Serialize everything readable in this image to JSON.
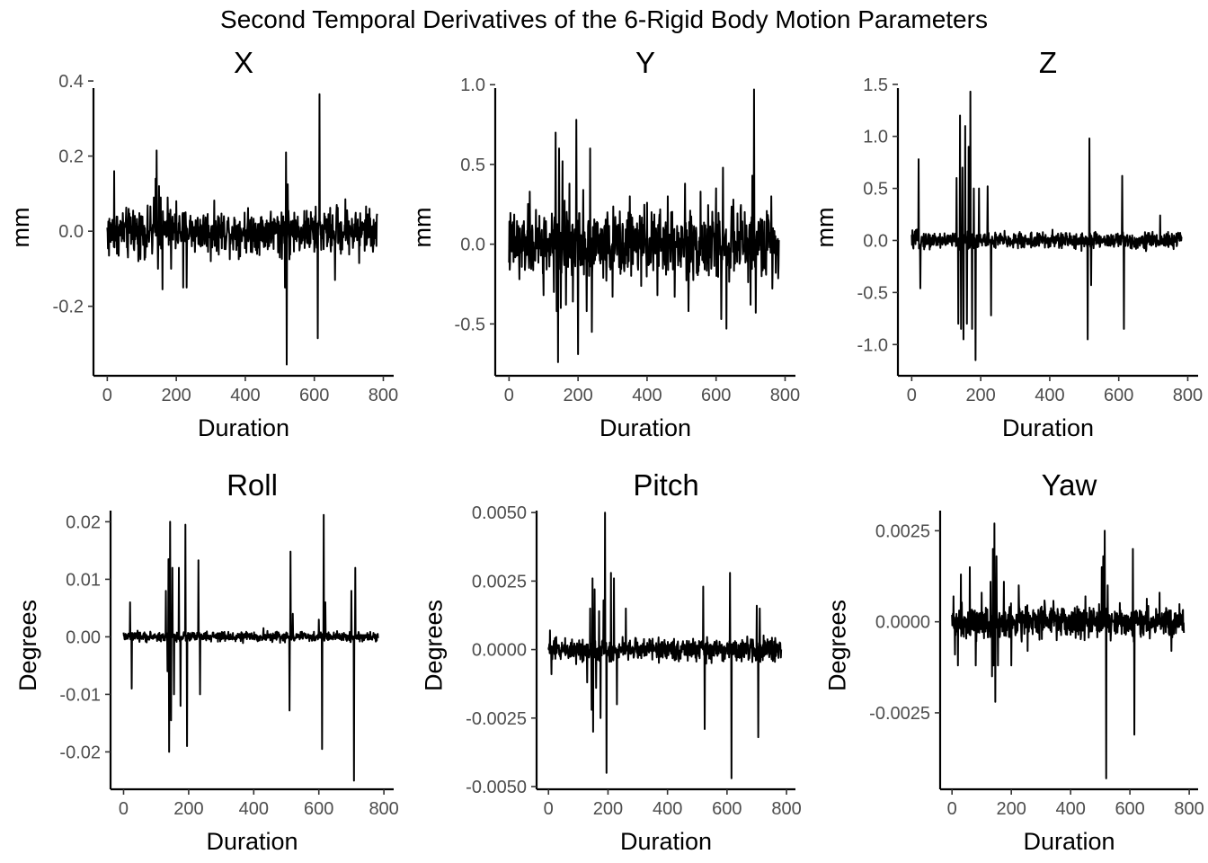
{
  "title": "Second Temporal Derivatives of the 6-Rigid Body Motion Parameters",
  "chart_data": [
    {
      "type": "line",
      "title": "X",
      "xlabel": "Duration",
      "ylabel": "mm",
      "xlim": [
        -40,
        830
      ],
      "ylim": [
        -0.385,
        0.405
      ],
      "xticks": [
        0,
        200,
        400,
        600,
        800
      ],
      "xtick_labels": [
        "0",
        "200",
        "400",
        "600",
        "800"
      ],
      "yticks": [
        -0.2,
        0.0,
        0.2,
        0.4
      ],
      "ytick_labels": [
        "-0.2",
        "0.0",
        "0.2",
        "0.4"
      ],
      "grid": false,
      "legend": "none",
      "n_points": 783,
      "noise": 0.028,
      "spikes": [
        [
          5,
          -0.065
        ],
        [
          20,
          0.16
        ],
        [
          28,
          -0.06
        ],
        [
          60,
          -0.07
        ],
        [
          75,
          0.055
        ],
        [
          90,
          -0.08
        ],
        [
          110,
          -0.07
        ],
        [
          130,
          -0.06
        ],
        [
          135,
          0.09
        ],
        [
          140,
          0.14
        ],
        [
          143,
          0.215
        ],
        [
          147,
          -0.1
        ],
        [
          150,
          0.12
        ],
        [
          155,
          0.09
        ],
        [
          160,
          -0.155
        ],
        [
          175,
          0.09
        ],
        [
          185,
          -0.1
        ],
        [
          200,
          0.08
        ],
        [
          220,
          -0.15
        ],
        [
          230,
          -0.15
        ],
        [
          300,
          -0.08
        ],
        [
          500,
          -0.07
        ],
        [
          505,
          0.05
        ],
        [
          515,
          -0.15
        ],
        [
          518,
          0.21
        ],
        [
          520,
          -0.355
        ],
        [
          523,
          0.125
        ],
        [
          528,
          -0.075
        ],
        [
          600,
          -0.055
        ],
        [
          610,
          -0.285
        ],
        [
          615,
          0.365
        ],
        [
          660,
          -0.13
        ],
        [
          665,
          0.07
        ],
        [
          690,
          0.085
        ],
        [
          730,
          -0.085
        ],
        [
          760,
          0.06
        ]
      ]
    },
    {
      "type": "line",
      "title": "Y",
      "xlabel": "Duration",
      "ylabel": "mm",
      "xlim": [
        -40,
        830
      ],
      "ylim": [
        -0.825,
        1.035
      ],
      "xticks": [
        0,
        200,
        400,
        600,
        800
      ],
      "xtick_labels": [
        "0",
        "200",
        "400",
        "600",
        "800"
      ],
      "yticks": [
        -0.5,
        0.0,
        0.5,
        1.0
      ],
      "ytick_labels": [
        "-0.5",
        "0.0",
        "0.5",
        "1.0"
      ],
      "grid": false,
      "legend": "none",
      "n_points": 783,
      "noise": 0.1,
      "spikes": [
        [
          30,
          -0.22
        ],
        [
          60,
          0.33
        ],
        [
          100,
          -0.32
        ],
        [
          130,
          -0.3
        ],
        [
          135,
          0.7
        ],
        [
          138,
          -0.42
        ],
        [
          142,
          -0.74
        ],
        [
          145,
          0.6
        ],
        [
          150,
          -0.4
        ],
        [
          155,
          0.52
        ],
        [
          165,
          -0.38
        ],
        [
          175,
          0.38
        ],
        [
          185,
          -0.36
        ],
        [
          195,
          0.78
        ],
        [
          200,
          -0.69
        ],
        [
          215,
          0.34
        ],
        [
          225,
          -0.42
        ],
        [
          235,
          0.6
        ],
        [
          240,
          -0.55
        ],
        [
          300,
          -0.33
        ],
        [
          350,
          0.3
        ],
        [
          400,
          0.26
        ],
        [
          430,
          -0.32
        ],
        [
          460,
          0.3
        ],
        [
          480,
          -0.33
        ],
        [
          510,
          0.38
        ],
        [
          520,
          -0.42
        ],
        [
          555,
          0.33
        ],
        [
          600,
          0.35
        ],
        [
          615,
          -0.47
        ],
        [
          620,
          0.48
        ],
        [
          630,
          -0.53
        ],
        [
          650,
          0.28
        ],
        [
          700,
          -0.38
        ],
        [
          705,
          0.43
        ],
        [
          710,
          0.97
        ],
        [
          715,
          -0.43
        ],
        [
          760,
          0.3
        ]
      ]
    },
    {
      "type": "line",
      "title": "Z",
      "xlabel": "Duration",
      "ylabel": "mm",
      "xlim": [
        -40,
        830
      ],
      "ylim": [
        -1.3,
        1.55
      ],
      "xticks": [
        0,
        200,
        400,
        600,
        800
      ],
      "xtick_labels": [
        "0",
        "200",
        "400",
        "600",
        "800"
      ],
      "yticks": [
        -1.0,
        -0.5,
        0.0,
        0.5,
        1.0,
        1.5
      ],
      "ytick_labels": [
        "-1.0",
        "-0.5",
        "0.0",
        "0.5",
        "1.0",
        "1.5"
      ],
      "grid": false,
      "legend": "none",
      "n_points": 783,
      "noise": 0.04,
      "spikes": [
        [
          20,
          0.78
        ],
        [
          25,
          -0.46
        ],
        [
          130,
          0.6
        ],
        [
          135,
          -0.8
        ],
        [
          140,
          1.2
        ],
        [
          143,
          -0.85
        ],
        [
          147,
          0.7
        ],
        [
          150,
          -0.95
        ],
        [
          155,
          1.1
        ],
        [
          160,
          -0.8
        ],
        [
          165,
          0.9
        ],
        [
          170,
          1.43
        ],
        [
          175,
          -0.85
        ],
        [
          180,
          0.5
        ],
        [
          185,
          -1.15
        ],
        [
          195,
          0.5
        ],
        [
          220,
          0.52
        ],
        [
          230,
          -0.72
        ],
        [
          510,
          -0.95
        ],
        [
          515,
          0.98
        ],
        [
          520,
          -0.43
        ],
        [
          610,
          0.62
        ],
        [
          615,
          -0.85
        ],
        [
          720,
          0.24
        ]
      ]
    },
    {
      "type": "line",
      "title": "Roll",
      "xlabel": "Duration",
      "ylabel": "Degrees",
      "xlim": [
        -40,
        830
      ],
      "ylim": [
        -0.0265,
        0.0235
      ],
      "xticks": [
        0,
        200,
        400,
        600,
        800
      ],
      "xtick_labels": [
        "0",
        "200",
        "400",
        "600",
        "800"
      ],
      "yticks": [
        -0.02,
        -0.01,
        0.0,
        0.01,
        0.02
      ],
      "ytick_labels": [
        "-0.02",
        "-0.01",
        "0.00",
        "0.01",
        "0.02"
      ],
      "grid": false,
      "legend": "none",
      "n_points": 783,
      "noise": 0.0004,
      "spikes": [
        [
          20,
          0.006
        ],
        [
          25,
          -0.009
        ],
        [
          130,
          0.008
        ],
        [
          135,
          -0.006
        ],
        [
          138,
          0.0135
        ],
        [
          140,
          -0.02
        ],
        [
          143,
          0.02
        ],
        [
          146,
          -0.0145
        ],
        [
          150,
          0.012
        ],
        [
          155,
          -0.01
        ],
        [
          170,
          0.012
        ],
        [
          175,
          -0.012
        ],
        [
          190,
          0.0195
        ],
        [
          195,
          -0.019
        ],
        [
          230,
          0.0133
        ],
        [
          235,
          -0.01
        ],
        [
          430,
          0.0015
        ],
        [
          510,
          -0.0128
        ],
        [
          513,
          0.0148
        ],
        [
          520,
          0.004
        ],
        [
          600,
          0.003
        ],
        [
          610,
          -0.0195
        ],
        [
          615,
          0.0212
        ],
        [
          620,
          0.006
        ],
        [
          700,
          0.008
        ],
        [
          708,
          -0.025
        ],
        [
          712,
          0.012
        ]
      ]
    },
    {
      "type": "line",
      "title": "Pitch",
      "xlabel": "Duration",
      "ylabel": "Degrees",
      "xlim": [
        -40,
        830
      ],
      "ylim": [
        -0.0051,
        0.0054
      ],
      "xticks": [
        0,
        200,
        400,
        600,
        800
      ],
      "xtick_labels": [
        "0",
        "200",
        "400",
        "600",
        "800"
      ],
      "yticks": [
        -0.005,
        -0.0025,
        0.0,
        0.0025,
        0.005
      ],
      "ytick_labels": [
        "-0.0050",
        "-0.0025",
        "0.0000",
        "0.0025",
        "0.0050"
      ],
      "grid": false,
      "legend": "none",
      "n_points": 783,
      "noise": 0.0002,
      "spikes": [
        [
          5,
          0.0007
        ],
        [
          10,
          -0.0009
        ],
        [
          130,
          -0.0012
        ],
        [
          140,
          0.0015
        ],
        [
          145,
          -0.0022
        ],
        [
          148,
          0.0026
        ],
        [
          150,
          -0.003
        ],
        [
          155,
          0.0022
        ],
        [
          160,
          -0.0014
        ],
        [
          170,
          0.0014
        ],
        [
          175,
          -0.0025
        ],
        [
          185,
          0.0018
        ],
        [
          190,
          0.005
        ],
        [
          195,
          -0.0045
        ],
        [
          210,
          0.0028
        ],
        [
          220,
          0.0026
        ],
        [
          230,
          -0.002
        ],
        [
          260,
          0.0015
        ],
        [
          520,
          0.0023
        ],
        [
          525,
          -0.0029
        ],
        [
          610,
          0.0028
        ],
        [
          615,
          -0.0047
        ],
        [
          700,
          0.0016
        ],
        [
          705,
          -0.0032
        ],
        [
          710,
          0.0015
        ]
      ]
    },
    {
      "type": "line",
      "title": "Yaw",
      "xlabel": "Duration",
      "ylabel": "Degrees",
      "xlim": [
        -40,
        830
      ],
      "ylim": [
        -0.0046,
        0.0033
      ],
      "xticks": [
        0,
        200,
        400,
        600,
        800
      ],
      "xtick_labels": [
        "0",
        "200",
        "400",
        "600",
        "800"
      ],
      "yticks": [
        -0.0025,
        0.0,
        0.0025
      ],
      "ytick_labels": [
        "-0.0025",
        "0.0000",
        "0.0025"
      ],
      "grid": false,
      "legend": "none",
      "n_points": 783,
      "noise": 0.00022,
      "spikes": [
        [
          5,
          0.0007
        ],
        [
          10,
          -0.0009
        ],
        [
          20,
          -0.0012
        ],
        [
          30,
          0.0013
        ],
        [
          60,
          0.0015
        ],
        [
          80,
          -0.0012
        ],
        [
          100,
          0.0008
        ],
        [
          130,
          0.0011
        ],
        [
          135,
          -0.0015
        ],
        [
          138,
          0.002
        ],
        [
          140,
          -0.0012
        ],
        [
          143,
          0.0027
        ],
        [
          146,
          -0.0022
        ],
        [
          150,
          0.0018
        ],
        [
          155,
          -0.0012
        ],
        [
          175,
          0.0011
        ],
        [
          200,
          -0.0012
        ],
        [
          225,
          0.001
        ],
        [
          255,
          -0.0008
        ],
        [
          450,
          0.0007
        ],
        [
          505,
          0.0015
        ],
        [
          510,
          0.0018
        ],
        [
          515,
          0.0025
        ],
        [
          520,
          -0.0043
        ],
        [
          525,
          0.001
        ],
        [
          610,
          0.002
        ],
        [
          615,
          -0.0031
        ],
        [
          700,
          0.0008
        ],
        [
          740,
          -0.0008
        ]
      ]
    }
  ]
}
